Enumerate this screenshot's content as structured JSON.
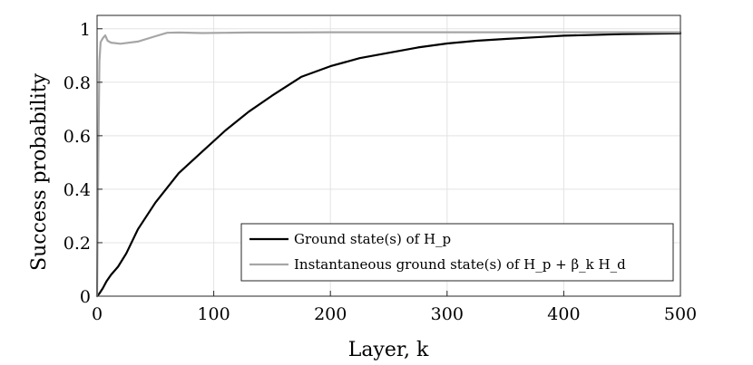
{
  "chart_data": {
    "type": "line",
    "xlabel": "Layer, k",
    "ylabel": "Success probability",
    "xlim": [
      0,
      500
    ],
    "ylim": [
      0,
      1.05
    ],
    "xticks": [
      0,
      100,
      200,
      300,
      400,
      500
    ],
    "yticks": [
      0,
      0.2,
      0.4,
      0.6,
      0.8,
      1
    ],
    "xtick_labels": [
      "0",
      "100",
      "200",
      "300",
      "400",
      "500"
    ],
    "ytick_labels": [
      "0",
      "0.2",
      "0.4",
      "0.6",
      "0.8",
      "1"
    ],
    "grid": true,
    "legend_position": "bottom-right",
    "series": [
      {
        "name": "Ground state(s) of H_p",
        "color": "#000000",
        "x": [
          0,
          2,
          5,
          8,
          12,
          18,
          25,
          35,
          50,
          70,
          90,
          110,
          130,
          150,
          175,
          200,
          225,
          250,
          275,
          300,
          325,
          350,
          375,
          400,
          450,
          500
        ],
        "y": [
          0,
          0.01,
          0.03,
          0.055,
          0.08,
          0.11,
          0.16,
          0.25,
          0.35,
          0.46,
          0.54,
          0.62,
          0.69,
          0.75,
          0.82,
          0.86,
          0.89,
          0.91,
          0.93,
          0.945,
          0.955,
          0.962,
          0.968,
          0.974,
          0.98,
          0.983
        ]
      },
      {
        "name": "Instantaneous ground state(s) of H_p + β_k H_d",
        "color": "#a6a6a6",
        "x": [
          0,
          1,
          2,
          3,
          5,
          7,
          9,
          12,
          20,
          35,
          50,
          60,
          70,
          90,
          110,
          130,
          160,
          200,
          300,
          400,
          500
        ],
        "y": [
          0,
          0.5,
          0.88,
          0.95,
          0.965,
          0.975,
          0.955,
          0.948,
          0.944,
          0.952,
          0.972,
          0.985,
          0.986,
          0.984,
          0.985,
          0.986,
          0.986,
          0.987,
          0.987,
          0.987,
          0.987
        ]
      }
    ]
  }
}
